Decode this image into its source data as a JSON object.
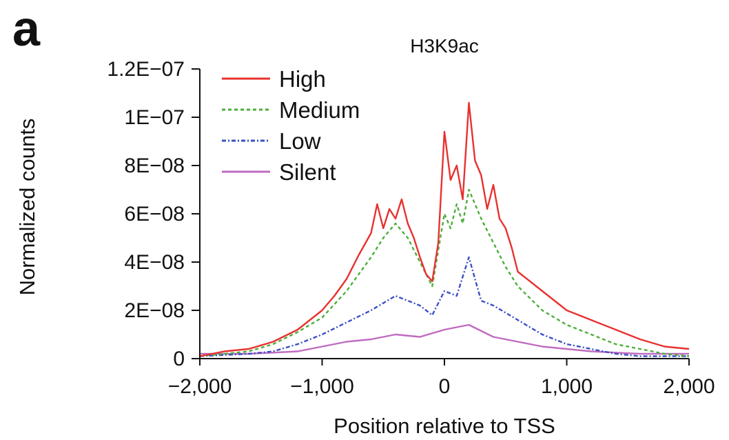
{
  "panel_label": "a",
  "chart_data": {
    "type": "line",
    "title": "H3K9ac",
    "xlabel": "Position relative to TSS",
    "ylabel": "Normalized counts",
    "xlim": [
      -2000,
      2000
    ],
    "ylim": [
      0,
      1.2e-07
    ],
    "xticks": [
      -2000,
      -1000,
      0,
      1000,
      2000
    ],
    "xtick_labels": [
      "−2,000",
      "−1,000",
      "0",
      "1,000",
      "2,000"
    ],
    "yticks": [
      0,
      2e-08,
      4e-08,
      6e-08,
      8e-08,
      1e-07,
      1.2e-07
    ],
    "ytick_labels": [
      "0",
      "2E−08",
      "4E−08",
      "6E−08",
      "8E−08",
      "1E−07",
      "1.2E−07"
    ],
    "grid": false,
    "legend_position": "top-left",
    "series": [
      {
        "name": "High",
        "color": "#e8312f",
        "dash": "solid",
        "x": [
          -2000,
          -1800,
          -1600,
          -1400,
          -1200,
          -1000,
          -900,
          -800,
          -700,
          -600,
          -550,
          -500,
          -450,
          -400,
          -350,
          -300,
          -250,
          -200,
          -150,
          -100,
          -50,
          0,
          50,
          100,
          150,
          200,
          250,
          300,
          350,
          400,
          450,
          500,
          550,
          600,
          700,
          800,
          900,
          1000,
          1200,
          1400,
          1600,
          1800,
          2000
        ],
        "values": [
          1e-09,
          3e-09,
          4e-09,
          7e-09,
          1.2e-08,
          2e-08,
          2.6e-08,
          3.3e-08,
          4.3e-08,
          5.2e-08,
          6.4e-08,
          5.4e-08,
          6.2e-08,
          5.8e-08,
          6.6e-08,
          5.6e-08,
          5e-08,
          4.2e-08,
          3.5e-08,
          3.2e-08,
          4.8e-08,
          9.4e-08,
          7.4e-08,
          8e-08,
          6.6e-08,
          1.06e-07,
          8.2e-08,
          7.6e-08,
          6.2e-08,
          7.2e-08,
          5.8e-08,
          5.4e-08,
          4.6e-08,
          3.6e-08,
          3.2e-08,
          2.8e-08,
          2.4e-08,
          2e-08,
          1.6e-08,
          1.2e-08,
          8e-09,
          5e-09,
          4e-09
        ]
      },
      {
        "name": "Medium",
        "color": "#4caf3a",
        "dash": "5,4",
        "x": [
          -2000,
          -1600,
          -1400,
          -1200,
          -1000,
          -800,
          -600,
          -500,
          -400,
          -300,
          -200,
          -100,
          0,
          50,
          100,
          150,
          200,
          300,
          400,
          500,
          600,
          800,
          1000,
          1200,
          1400,
          1600,
          1800,
          2000
        ],
        "values": [
          1e-09,
          3e-09,
          6e-09,
          1.1e-08,
          1.7e-08,
          2.8e-08,
          4.2e-08,
          5e-08,
          5.6e-08,
          5e-08,
          4e-08,
          3e-08,
          6e-08,
          5.4e-08,
          6.4e-08,
          5.6e-08,
          7e-08,
          5.8e-08,
          4.8e-08,
          3.8e-08,
          3e-08,
          2e-08,
          1.4e-08,
          1e-08,
          6e-09,
          4e-09,
          2e-09,
          1e-09
        ]
      },
      {
        "name": "Low",
        "color": "#3a4fc4",
        "dash": "6,3,2,3",
        "x": [
          -2000,
          -1600,
          -1400,
          -1200,
          -1000,
          -800,
          -600,
          -400,
          -300,
          -200,
          -100,
          0,
          100,
          200,
          300,
          400,
          600,
          800,
          1000,
          1200,
          1400,
          1600,
          2000
        ],
        "values": [
          1e-09,
          2e-09,
          3e-09,
          6e-09,
          1e-08,
          1.5e-08,
          2e-08,
          2.6e-08,
          2.4e-08,
          2.2e-08,
          1.8e-08,
          2.8e-08,
          2.6e-08,
          4.2e-08,
          2.4e-08,
          2.2e-08,
          1.6e-08,
          1e-08,
          6e-09,
          4e-09,
          2e-09,
          1e-09,
          1e-09
        ]
      },
      {
        "name": "Silent",
        "color": "#c06bc0",
        "dash": "solid",
        "x": [
          -2000,
          -1600,
          -1200,
          -1000,
          -800,
          -600,
          -400,
          -200,
          0,
          200,
          400,
          600,
          800,
          1000,
          1200,
          1600,
          2000
        ],
        "values": [
          2e-09,
          2e-09,
          3e-09,
          5e-09,
          7e-09,
          8e-09,
          1e-08,
          9e-09,
          1.2e-08,
          1.4e-08,
          9e-09,
          7e-09,
          5e-09,
          4e-09,
          3e-09,
          2e-09,
          2e-09
        ]
      }
    ]
  }
}
